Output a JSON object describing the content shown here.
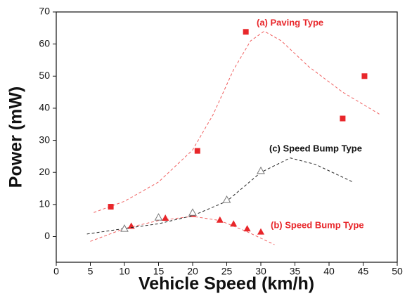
{
  "chart_data": {
    "type": "scatter",
    "x_label": "Vehicle Speed (km/h)",
    "y_label": "Power (mW)",
    "xlim": [
      0,
      50
    ],
    "ylim": [
      -8,
      70
    ],
    "xticks": [
      0,
      5,
      10,
      15,
      20,
      25,
      30,
      35,
      40,
      45,
      50
    ],
    "yticks": [
      0,
      10,
      20,
      30,
      40,
      50,
      60,
      70
    ],
    "series": [
      {
        "name": "(a) Paving Type",
        "color": "#e8262a",
        "marker": "square",
        "x": [
          8,
          20.7,
          27.8,
          42,
          45.2
        ],
        "values": [
          9.3,
          26.7,
          63.8,
          36.8,
          50
        ],
        "fit": {
          "color": "#f06060",
          "x": [
            5.5,
            10,
            15,
            20,
            23,
            26,
            28.5,
            30.5,
            33,
            37,
            42,
            47.5
          ],
          "values": [
            7.5,
            11,
            17,
            27,
            38,
            52,
            61,
            64,
            61,
            53,
            45,
            38
          ]
        }
      },
      {
        "name": "(b) Speed Bump Type",
        "color": "#e8262a",
        "marker": "triangle",
        "x": [
          11,
          16,
          20,
          24,
          26,
          28,
          30
        ],
        "values": [
          3.3,
          5.8,
          7,
          5.2,
          4,
          2.5,
          1.5
        ],
        "fit": {
          "color": "#f06060",
          "x": [
            5,
            10,
            15,
            20,
            24,
            28,
            32
          ],
          "values": [
            -1.5,
            2.5,
            5,
            6.3,
            5,
            1.5,
            -2.5
          ]
        }
      },
      {
        "name": "(c) Speed Bump Type",
        "color": "#111111",
        "marker": "triangle-open",
        "x": [
          10,
          15,
          20,
          25,
          30
        ],
        "values": [
          2.5,
          6,
          7.5,
          11.5,
          20.5
        ],
        "fit": {
          "color": "#222222",
          "x": [
            4.5,
            10,
            15,
            20,
            25,
            30,
            34.3,
            38,
            43.5
          ],
          "values": [
            0.8,
            2.5,
            4,
            6.5,
            11,
            20,
            24.5,
            22.5,
            17
          ]
        }
      }
    ]
  }
}
